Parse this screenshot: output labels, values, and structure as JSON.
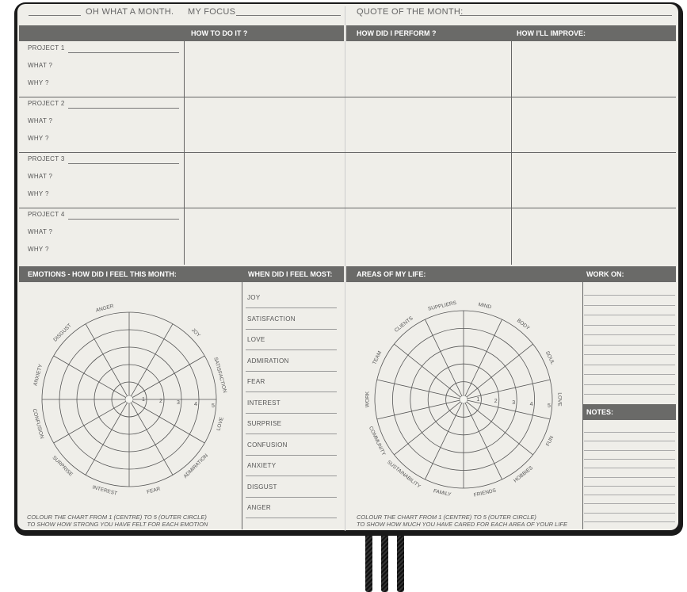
{
  "header": {
    "month_label": "OH WHAT A MONTH.",
    "focus_label": "MY FOCUS",
    "quote_label": "QUOTE OF THE MONTH:"
  },
  "columns": {
    "how": "HOW TO DO IT ?",
    "perform": "HOW DID I PERFORM ?",
    "improve": "HOW I'LL IMPROVE:"
  },
  "projects": [
    {
      "label": "PROJECT 1",
      "what": "WHAT ?",
      "why": "WHY ?"
    },
    {
      "label": "PROJECT 2",
      "what": "WHAT ?",
      "why": "WHY ?"
    },
    {
      "label": "PROJECT 3",
      "what": "WHAT ?",
      "why": "WHY ?"
    },
    {
      "label": "PROJECT 4",
      "what": "WHAT ?",
      "why": "WHY ?"
    }
  ],
  "emotions": {
    "title": "EMOTIONS - HOW DID I FEEL THIS MONTH:",
    "when_title": "WHEN DID I FEEL MOST:",
    "wheel_labels": [
      "JOY",
      "SATISFACTION",
      "LOVE",
      "ADMIRATION",
      "FEAR",
      "INTEREST",
      "SURPRISE",
      "CONFUSION",
      "ANXIETY",
      "DISGUST",
      "ANGER"
    ],
    "scale": [
      "1",
      "2",
      "3",
      "4",
      "5"
    ],
    "list": [
      "JOY",
      "SATISFACTION",
      "LOVE",
      "ADMIRATION",
      "FEAR",
      "INTEREST",
      "SURPRISE",
      "CONFUSION",
      "ANXIETY",
      "DISGUST",
      "ANGER"
    ],
    "footer": [
      "COLOUR THE CHART FROM 1 (CENTRE) TO 5 (OUTER CIRCLE)",
      "TO SHOW HOW STRONG YOU HAVE FELT FOR EACH EMOTION"
    ]
  },
  "areas": {
    "title": "AREAS OF MY LIFE:",
    "work_on": "WORK ON:",
    "notes": "NOTES:",
    "wheel_labels": [
      "MIND",
      "BODY",
      "SOUL",
      "LOVE",
      "FUN",
      "HOBBIES",
      "FRIENDS",
      "FAMILY",
      "SUSTAINABILITY",
      "COMMUNITY",
      "WORK",
      "TEAM",
      "CLIENTS",
      "SUPPLIERS"
    ],
    "scale": [
      "1",
      "2",
      "3",
      "4",
      "5"
    ],
    "footer": [
      "COLOUR THE CHART FROM 1 (CENTRE) TO 5 (OUTER CIRCLE)",
      "TO SHOW HOW MUCH YOU HAVE CARED FOR EACH AREA OF YOUR LIFE"
    ]
  },
  "colors": {
    "bar": "#6a6a68",
    "paper": "#efeee9",
    "cover": "#1a1a1a"
  }
}
